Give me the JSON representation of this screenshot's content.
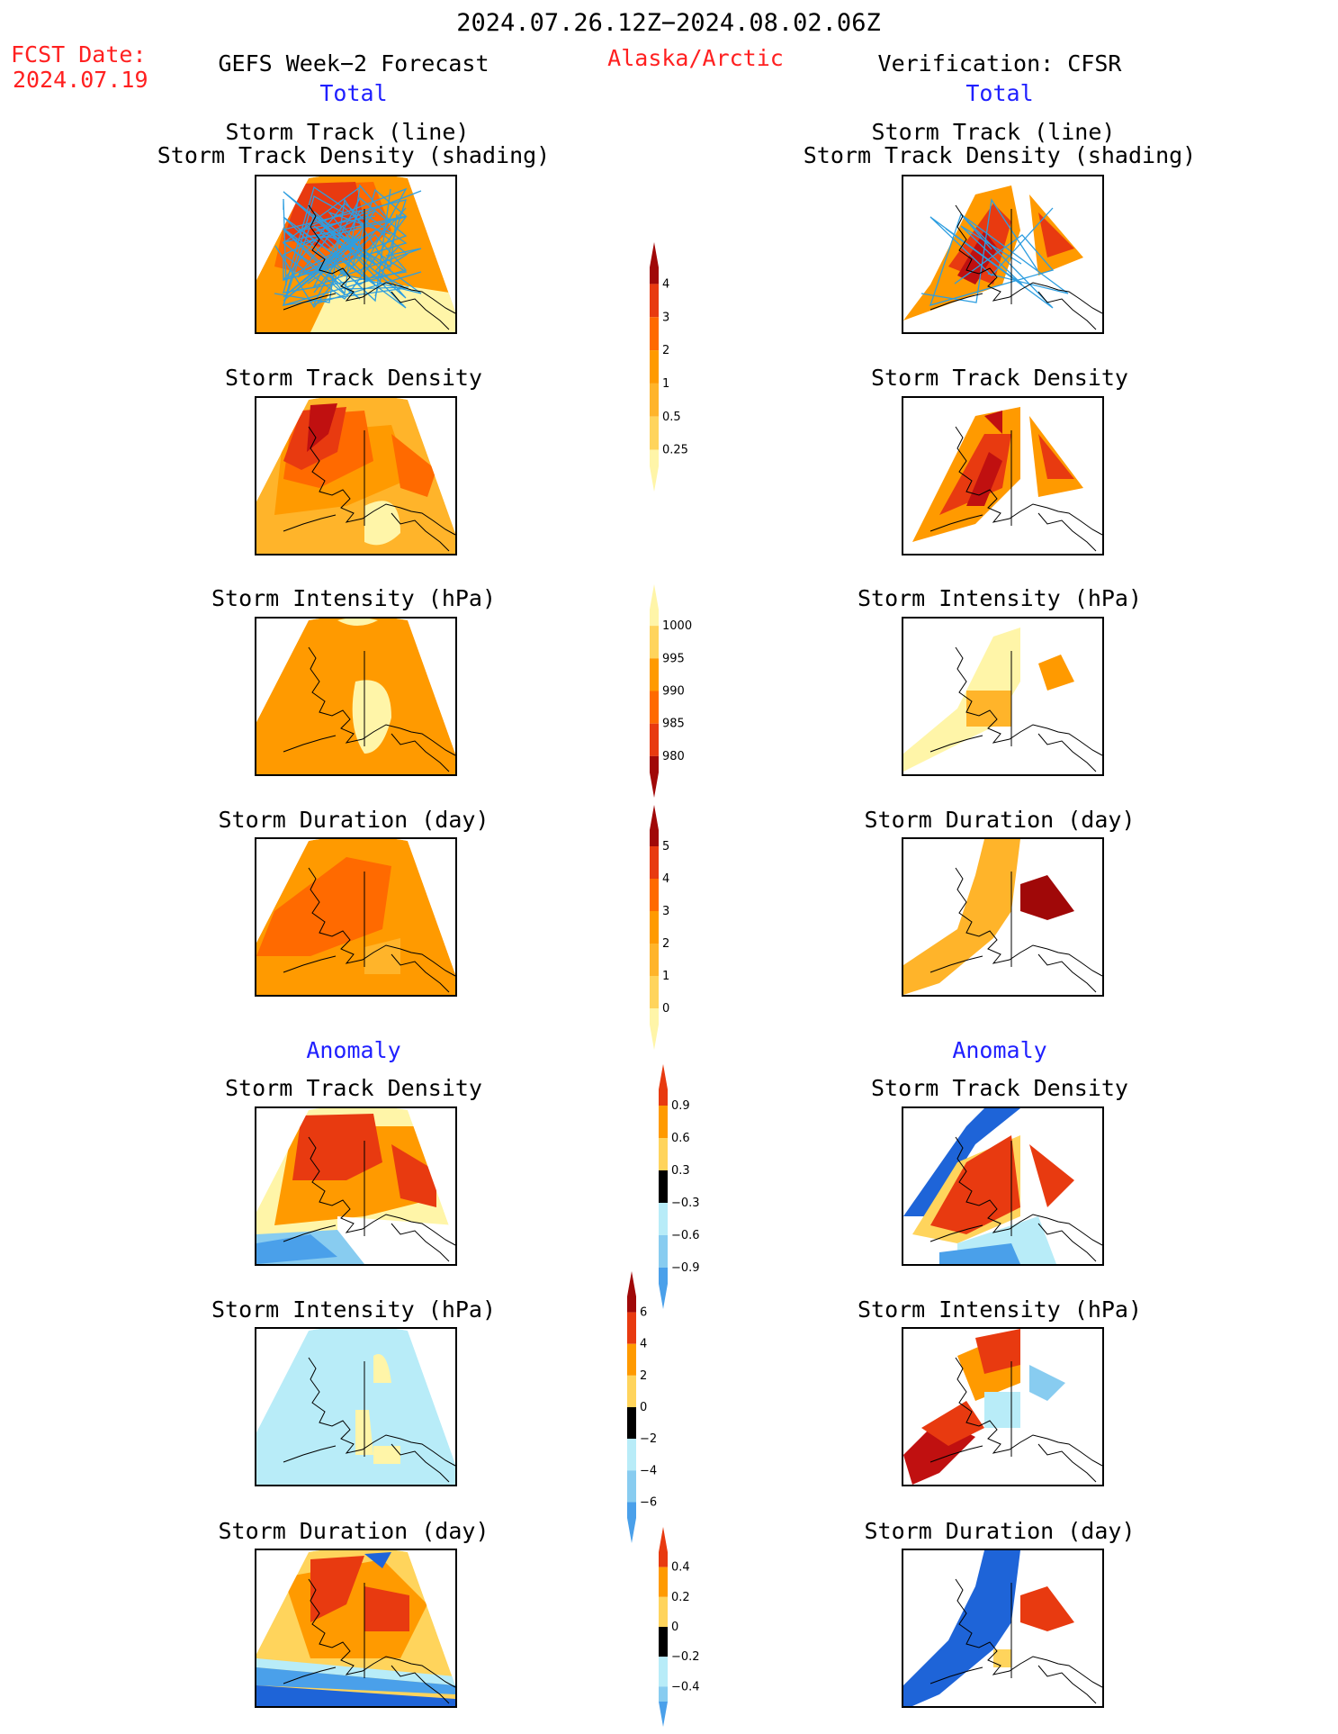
{
  "header": {
    "title": "2024.07.26.12Z−2024.08.02.06Z",
    "fcst_label": "FCST Date:",
    "fcst_date": "2024.07.19",
    "left_title": "GEFS Week−2 Forecast",
    "center_title": "Alaska/Arctic",
    "right_title": "Verification: CFSR"
  },
  "sections": {
    "total": "Total",
    "anomaly": "Anomaly"
  },
  "panel_titles": {
    "track_line": "Storm Track (line)",
    "track_shading": "Storm Track Density (shading)",
    "density": "Storm Track Density",
    "intensity": "Storm Intensity (hPa)",
    "duration": "Storm Duration (day)"
  },
  "colorbars": {
    "density_total": [
      "4",
      "3",
      "2",
      "1",
      "0.5",
      "0.25"
    ],
    "intensity_total": [
      "1000",
      "995",
      "990",
      "985",
      "980"
    ],
    "duration_total": [
      "5",
      "4",
      "3",
      "2",
      "1",
      "0"
    ],
    "density_anom": [
      "0.9",
      "0.6",
      "0.3",
      "−0.3",
      "−0.6",
      "−0.9"
    ],
    "intensity_anom": [
      "6",
      "4",
      "2",
      "0",
      "−2",
      "−4",
      "−6"
    ],
    "duration_anom": [
      "0.4",
      "0.2",
      "0",
      "−0.2",
      "−0.4"
    ]
  },
  "colors": {
    "pale_yellow": "#fff5a8",
    "yellow": "#ffd45c",
    "light_orange": "#ffb42a",
    "orange": "#ff9a00",
    "dark_orange": "#ff6a00",
    "red": "#e83a10",
    "dark_red": "#c01010",
    "maroon": "#a00808",
    "light_cyan": "#b8ecf8",
    "light_blue": "#88ccf0",
    "mid_blue": "#4aa0ea",
    "blue": "#1e64d8",
    "track_line": "#2e9ee0",
    "text_red": "#ff2020",
    "text_blue": "#2020ff"
  }
}
